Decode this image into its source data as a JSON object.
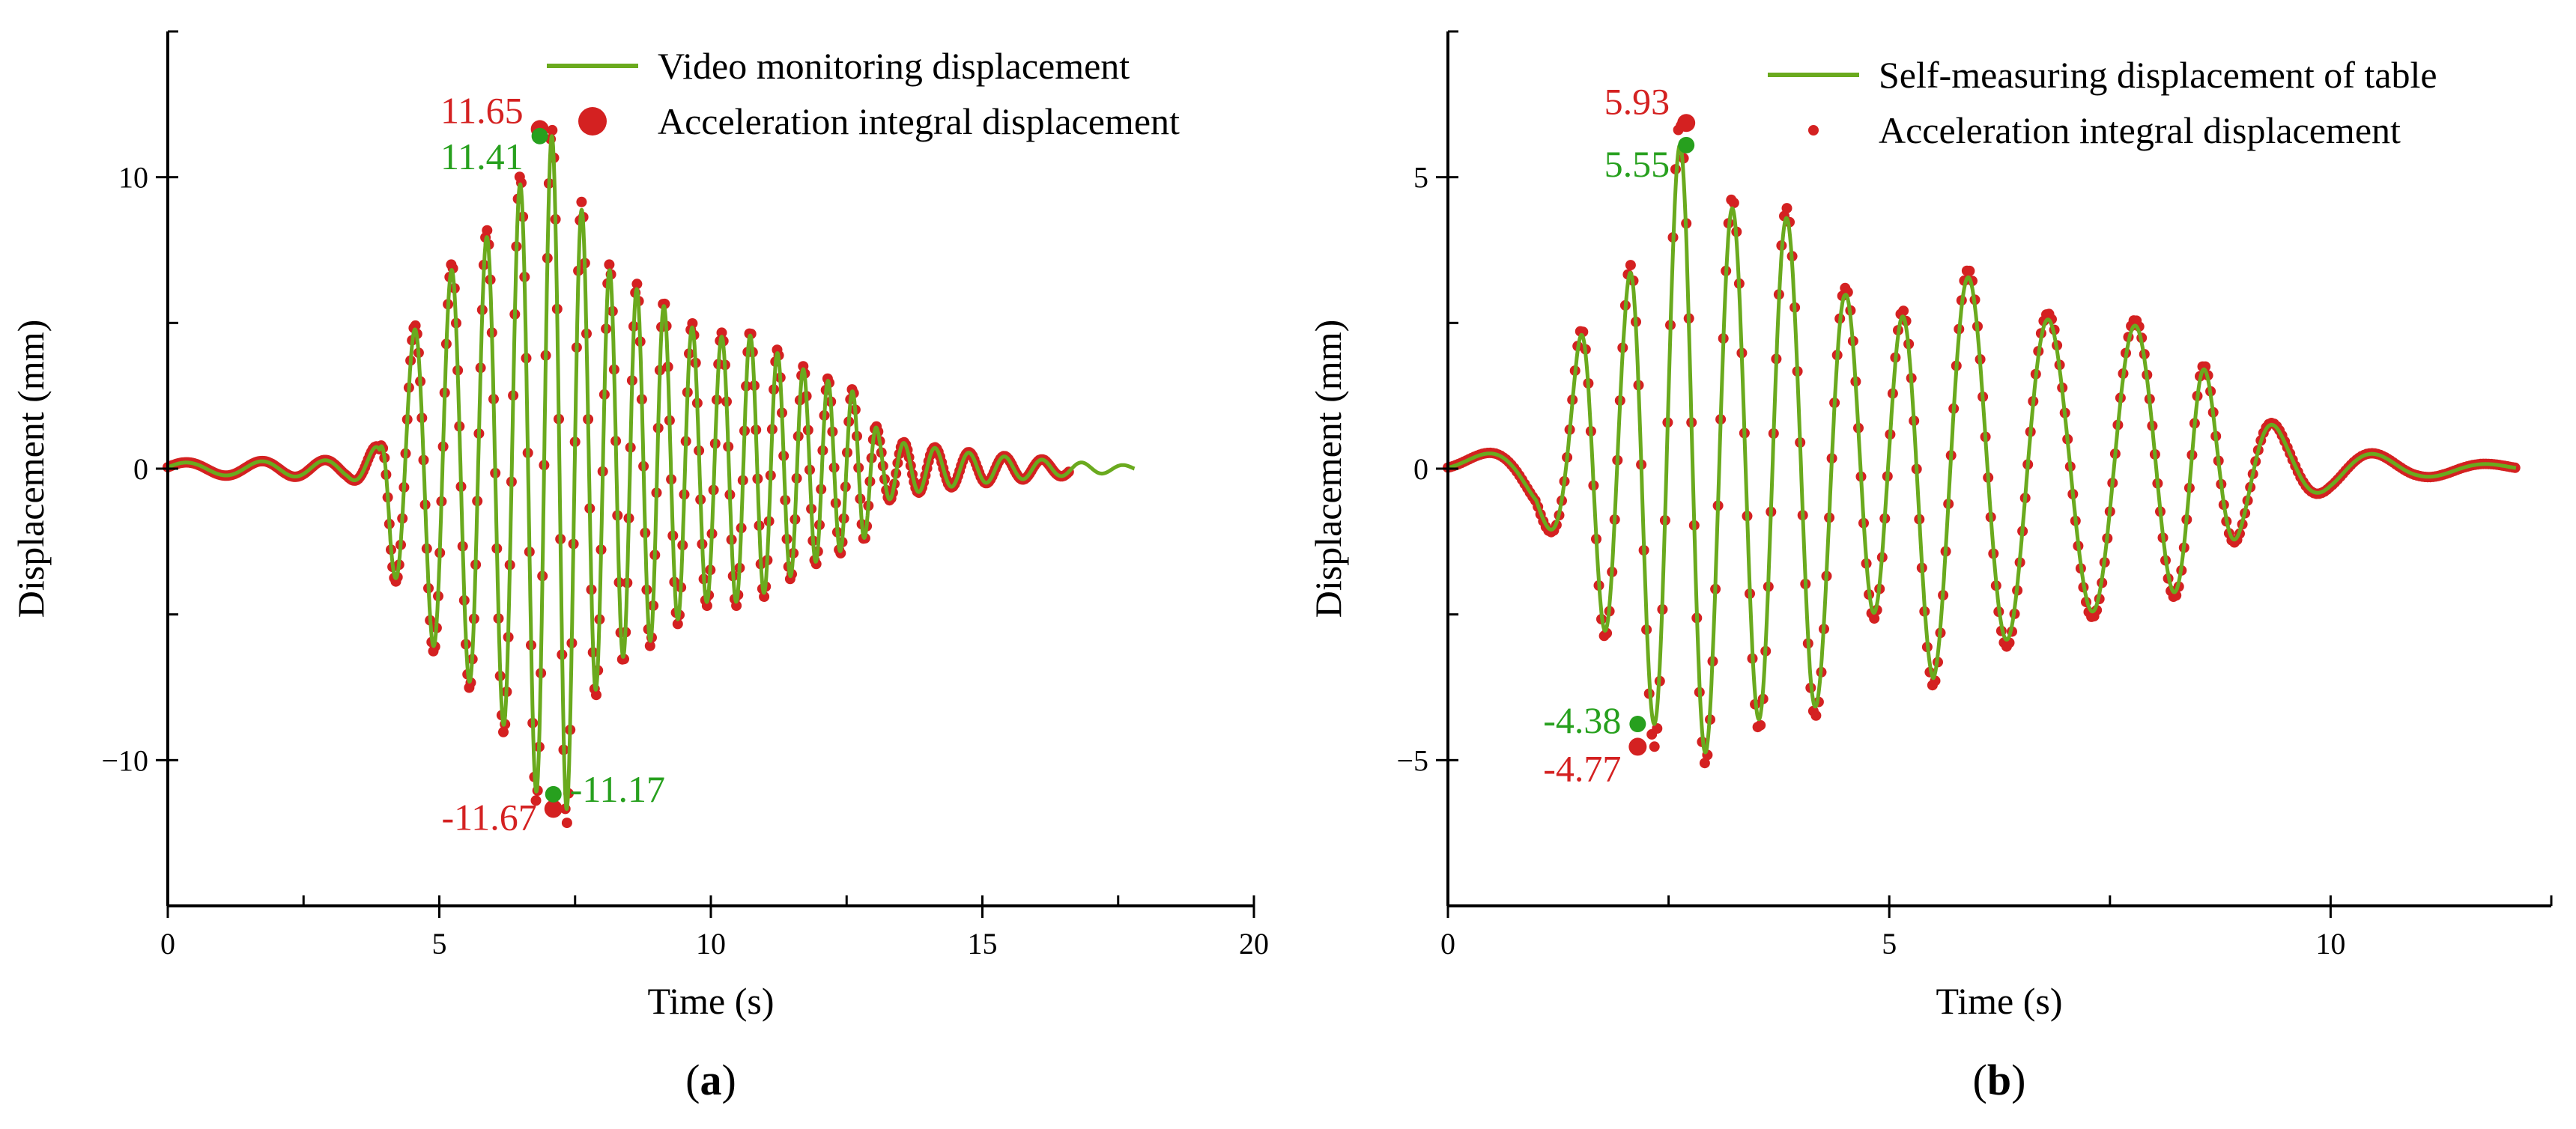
{
  "chart_data": [
    {
      "panel_label": "a",
      "type": "line",
      "xlabel": "Time (s)",
      "ylabel": "Displacement (mm)",
      "xlim": [
        0,
        20
      ],
      "ylim": [
        -15,
        15
      ],
      "xticks": [
        0,
        5,
        10,
        15,
        20
      ],
      "yticks": [
        -10,
        0,
        10
      ],
      "minor_x_step": 2.5,
      "minor_y_step": 5,
      "legend_position": "top-right",
      "series": [
        {
          "name": "Video monitoring displacement",
          "style": "line",
          "color": "#6aaa1e",
          "duration": 17.8,
          "envelope": [
            [
              0,
              0.2
            ],
            [
              3.3,
              0.3
            ],
            [
              3.9,
              0.8
            ],
            [
              4.1,
              3.5
            ],
            [
              4.5,
              4.6
            ],
            [
              5.0,
              6.5
            ],
            [
              5.5,
              7.2
            ],
            [
              6.0,
              8.2
            ],
            [
              6.5,
              9.8
            ],
            [
              6.9,
              11.6
            ],
            [
              7.2,
              11.0
            ],
            [
              7.6,
              9.0
            ],
            [
              8.0,
              7.0
            ],
            [
              8.5,
              6.3
            ],
            [
              9.0,
              5.8
            ],
            [
              9.5,
              5.0
            ],
            [
              10.0,
              4.5
            ],
            [
              10.7,
              4.6
            ],
            [
              11.2,
              4.0
            ],
            [
              11.8,
              3.3
            ],
            [
              12.3,
              2.9
            ],
            [
              12.8,
              2.5
            ],
            [
              13.1,
              1.2
            ],
            [
              13.5,
              0.9
            ],
            [
              14.5,
              0.6
            ],
            [
              15.5,
              0.4
            ],
            [
              16.5,
              0.25
            ],
            [
              17.8,
              0.1
            ]
          ],
          "periods": [
            [
              0,
              1.6
            ],
            [
              3.2,
              1.0
            ],
            [
              4.0,
              0.72
            ],
            [
              5.0,
              0.68
            ],
            [
              6.0,
              0.62
            ],
            [
              7.0,
              0.58
            ],
            [
              8.0,
              0.5
            ],
            [
              9.0,
              0.5
            ],
            [
              10.0,
              0.55
            ],
            [
              11.0,
              0.5
            ],
            [
              12.0,
              0.45
            ],
            [
              13.0,
              0.45
            ],
            [
              14.0,
              0.6
            ],
            [
              17.8,
              0.8
            ]
          ],
          "phase": 0.22,
          "peak": {
            "t": 6.85,
            "value": 11.41
          },
          "trough": {
            "t": 7.1,
            "value": -11.17
          }
        },
        {
          "name": "Acceleration integral displacement",
          "style": "dots",
          "color": "#d42121",
          "duration": 16.6,
          "scale": 1.03,
          "peak": {
            "t": 6.85,
            "value": 11.65
          },
          "trough": {
            "t": 7.1,
            "value": -11.67
          }
        }
      ],
      "annotations": [
        {
          "text": "11.65",
          "color": "#d42121",
          "x": 6.85,
          "y": 11.65,
          "anchor": "end"
        },
        {
          "text": "11.41",
          "color": "#27a01e",
          "x": 6.85,
          "y": 11.41,
          "anchor": "end"
        },
        {
          "text": "-11.67",
          "color": "#d42121",
          "x": 7.1,
          "y": -11.67,
          "anchor": "end"
        },
        {
          "text": "-11.17",
          "color": "#27a01e",
          "x": 7.1,
          "y": -11.17,
          "anchor": "start"
        }
      ]
    },
    {
      "panel_label": "b",
      "type": "line",
      "xlabel": "Time (s)",
      "ylabel": "Displacement (mm)",
      "xlim": [
        0,
        12.5
      ],
      "ylim": [
        -7.5,
        7.5
      ],
      "xticks": [
        0,
        5,
        10
      ],
      "yticks": [
        -5,
        0,
        5
      ],
      "minor_x_step": 2.5,
      "minor_y_step": 2.5,
      "legend_position": "top-right",
      "series": [
        {
          "name": "Self-measuring displacement of table",
          "style": "line",
          "color": "#6aaa1e",
          "duration": 12.1,
          "envelope": [
            [
              0,
              0.05
            ],
            [
              0.7,
              0.4
            ],
            [
              1.0,
              0.6
            ],
            [
              1.3,
              1.6
            ],
            [
              1.6,
              2.6
            ],
            [
              2.0,
              3.0
            ],
            [
              2.2,
              4.2
            ],
            [
              2.5,
              5.0
            ],
            [
              2.7,
              5.6
            ],
            [
              3.0,
              4.6
            ],
            [
              3.5,
              4.3
            ],
            [
              4.1,
              4.3
            ],
            [
              4.5,
              3.0
            ],
            [
              5.0,
              2.2
            ],
            [
              5.5,
              3.6
            ],
            [
              6.0,
              3.2
            ],
            [
              6.5,
              2.8
            ],
            [
              7.0,
              2.4
            ],
            [
              7.6,
              2.5
            ],
            [
              8.0,
              2.4
            ],
            [
              8.5,
              1.8
            ],
            [
              9.0,
              1.1
            ],
            [
              9.5,
              0.6
            ],
            [
              10.0,
              0.35
            ],
            [
              11.0,
              0.15
            ],
            [
              12.1,
              0.05
            ]
          ],
          "periods": [
            [
              0,
              2.0
            ],
            [
              1.1,
              1.2
            ],
            [
              1.5,
              0.55
            ],
            [
              2.1,
              0.55
            ],
            [
              2.7,
              0.6
            ],
            [
              3.5,
              0.6
            ],
            [
              4.2,
              0.7
            ],
            [
              5.0,
              0.6
            ],
            [
              5.6,
              0.8
            ],
            [
              6.3,
              0.9
            ],
            [
              7.0,
              1.0
            ],
            [
              8.0,
              0.95
            ],
            [
              8.5,
              0.6
            ],
            [
              9.2,
              0.9
            ],
            [
              10.0,
              1.2
            ],
            [
              12.1,
              1.4
            ]
          ],
          "phase": 0.35,
          "peak": {
            "t": 2.7,
            "value": 5.55
          },
          "trough": {
            "t": 2.15,
            "value": -4.38
          }
        },
        {
          "name": "Acceleration integral displacement",
          "style": "dots",
          "color": "#d42121",
          "duration": 12.1,
          "scale": 1.04,
          "peak": {
            "t": 2.7,
            "value": 5.93
          },
          "trough": {
            "t": 2.15,
            "value": -4.77
          }
        }
      ],
      "annotations": [
        {
          "text": "5.93",
          "color": "#d42121",
          "x": 2.7,
          "y": 5.93,
          "anchor": "end"
        },
        {
          "text": "5.55",
          "color": "#27a01e",
          "x": 2.7,
          "y": 5.55,
          "anchor": "end"
        },
        {
          "text": "-4.38",
          "color": "#27a01e",
          "x": 2.15,
          "y": -4.38,
          "anchor": "end"
        },
        {
          "text": "-4.77",
          "color": "#d42121",
          "x": 2.15,
          "y": -4.77,
          "anchor": "end"
        }
      ]
    }
  ]
}
